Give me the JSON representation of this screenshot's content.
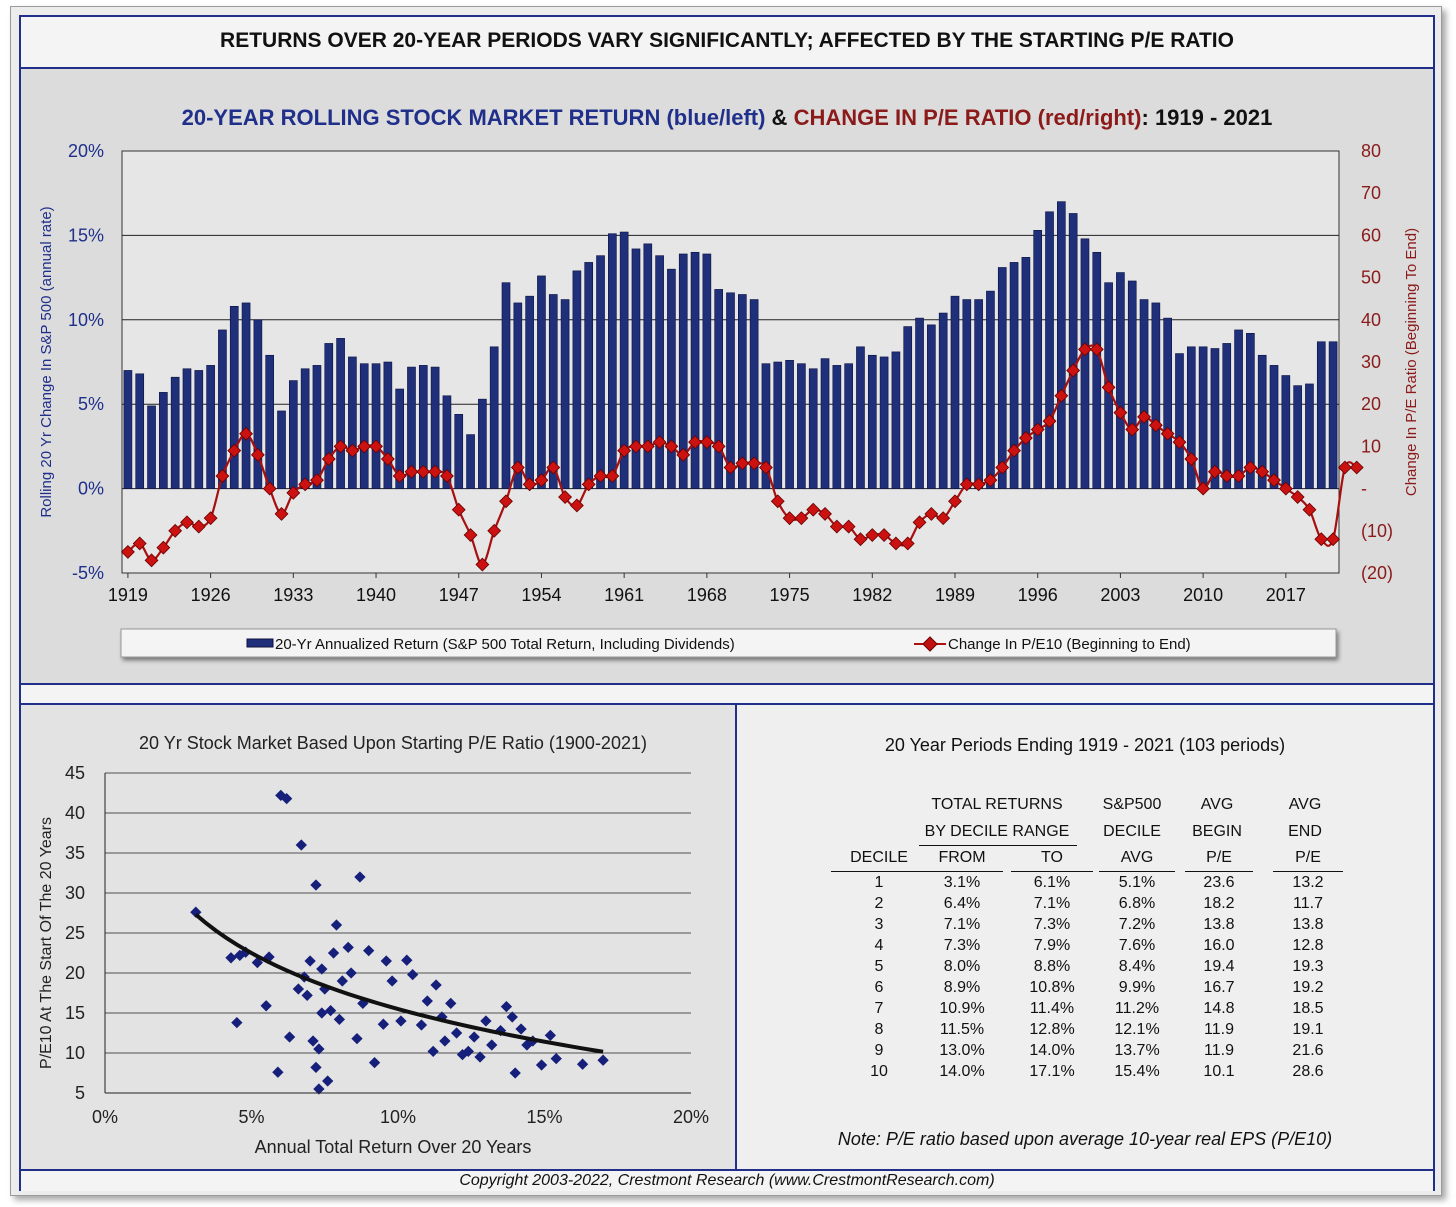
{
  "header": {
    "title": "RETURNS OVER 20-YEAR PERIODS VARY SIGNIFICANTLY; AFFECTED BY THE STARTING P/E RATIO"
  },
  "top_chart_title": {
    "part1": "20-YEAR ROLLING STOCK MARKET RETURN (blue/left)",
    "part2": " & ",
    "part3": "CHANGE IN P/E RATIO (red/right)",
    "part4": ": 1919 - 2021"
  },
  "colors": {
    "bar": "#1f2f7a",
    "line": "#b01010",
    "navy": "#1f2f8a",
    "darkred": "#8b1a1a"
  },
  "chart_data": [
    {
      "type": "bar",
      "title": "20-YEAR ROLLING STOCK MARKET RETURN (blue/left) & CHANGE IN P/E RATIO (red/right): 1919 - 2021",
      "ylabel": "Rolling 20 Yr Change In S&P 500 (annual rate)",
      "y2label": "Change In P/E Ratio (Beginning To End)",
      "ylim": [
        -5,
        20
      ],
      "y2lim": [
        -20,
        80
      ],
      "yticks": [
        "20%",
        "15%",
        "10%",
        "5%",
        "0%",
        "-5%"
      ],
      "y2ticks": [
        "80",
        "70",
        "60",
        "50",
        "40",
        "30",
        "20",
        "10",
        "-",
        "(10)",
        "(20)"
      ],
      "xticks": [
        "1919",
        "1926",
        "1933",
        "1940",
        "1947",
        "1954",
        "1961",
        "1968",
        "1975",
        "1982",
        "1989",
        "1996",
        "2003",
        "2010",
        "2017"
      ],
      "x_start": 1919,
      "x_end": 2021,
      "legend": [
        "20-Yr Annualized Return (S&P 500 Total Return, Including Dividends)",
        "Change In P/E10 (Beginning to End)"
      ],
      "series": [
        {
          "name": "20-Yr Annualized Return (S&P 500 Total Return, Including Dividends)",
          "type": "bar",
          "values": [
            7.0,
            6.8,
            4.9,
            5.7,
            6.6,
            7.1,
            7.0,
            7.3,
            9.4,
            10.8,
            11.0,
            10.0,
            7.9,
            4.6,
            6.4,
            7.1,
            7.3,
            8.6,
            8.9,
            7.8,
            7.4,
            7.4,
            7.5,
            5.9,
            7.2,
            7.3,
            7.2,
            5.5,
            4.4,
            3.2,
            5.3,
            8.4,
            12.2,
            11.0,
            11.4,
            12.6,
            11.5,
            11.2,
            12.9,
            13.4,
            13.8,
            15.1,
            15.2,
            14.2,
            14.5,
            13.8,
            13.0,
            13.9,
            14.0,
            13.9,
            11.8,
            11.6,
            11.5,
            11.2,
            7.4,
            7.5,
            7.6,
            7.4,
            7.1,
            7.7,
            7.3,
            7.4,
            8.4,
            7.9,
            7.8,
            8.1,
            9.6,
            10.1,
            9.7,
            10.4,
            11.4,
            11.2,
            11.2,
            11.7,
            13.1,
            13.4,
            13.7,
            15.3,
            16.4,
            17.0,
            16.3,
            14.8,
            14.0,
            12.2,
            12.8,
            12.3,
            11.2,
            11.0,
            10.1,
            8.0,
            8.4,
            8.4,
            8.3,
            8.6,
            9.4,
            9.2,
            7.9,
            7.3,
            6.7,
            6.1,
            6.2,
            8.7,
            8.7
          ]
        },
        {
          "name": "Change In P/E10 (Beginning to End)",
          "type": "line",
          "values": [
            -15,
            -13,
            -17,
            -14,
            -10,
            -8,
            -9,
            -7,
            3,
            9,
            13,
            8,
            0,
            -6,
            -1,
            1,
            2,
            7,
            10,
            9,
            10,
            10,
            7,
            3,
            4,
            4,
            4,
            3,
            -5,
            -11,
            -18,
            -10,
            -3,
            5,
            1,
            2,
            5,
            -2,
            -4,
            1,
            3,
            3,
            9,
            10,
            10,
            11,
            10,
            8,
            11,
            11,
            10,
            5,
            6,
            6,
            5,
            -3,
            -7,
            -7,
            -5,
            -6,
            -9,
            -9,
            -12,
            -11,
            -11,
            -13,
            -13,
            -8,
            -6,
            -7,
            -3,
            1,
            1,
            2,
            5,
            9,
            12,
            14,
            16,
            22,
            28,
            33,
            33,
            24,
            18,
            14,
            17,
            15,
            13,
            11,
            7,
            0,
            4,
            3,
            3,
            5,
            4,
            2,
            0,
            -2,
            -5,
            -12,
            -12,
            5,
            5
          ]
        }
      ]
    },
    {
      "type": "scatter",
      "title": "20 Yr Stock Market Based Upon Starting P/E Ratio (1900-2021)",
      "xlabel": "Annual Total Return Over 20 Years",
      "ylabel": "P/E10 At The Start Of The 20 Years",
      "xlim": [
        0,
        20
      ],
      "ylim": [
        5,
        45
      ],
      "xticks": [
        "0%",
        "5%",
        "10%",
        "15%",
        "20%"
      ],
      "yticks": [
        "45",
        "40",
        "35",
        "30",
        "25",
        "20",
        "15",
        "10",
        "5"
      ],
      "points": [
        [
          3.1,
          27.6
        ],
        [
          4.3,
          21.9
        ],
        [
          4.5,
          13.8
        ],
        [
          4.6,
          22.2
        ],
        [
          4.8,
          22.6
        ],
        [
          5.2,
          21.3
        ],
        [
          5.5,
          15.9
        ],
        [
          5.6,
          22.0
        ],
        [
          5.9,
          7.6
        ],
        [
          6.0,
          42.2
        ],
        [
          6.2,
          41.8
        ],
        [
          6.3,
          12.0
        ],
        [
          6.6,
          18.0
        ],
        [
          6.7,
          36.0
        ],
        [
          6.8,
          19.5
        ],
        [
          6.9,
          17.2
        ],
        [
          7.0,
          21.5
        ],
        [
          7.1,
          11.5
        ],
        [
          7.2,
          31.0
        ],
        [
          7.2,
          8.2
        ],
        [
          7.3,
          5.5
        ],
        [
          7.3,
          10.5
        ],
        [
          7.4,
          20.5
        ],
        [
          7.4,
          15.0
        ],
        [
          7.5,
          18.0
        ],
        [
          7.6,
          6.5
        ],
        [
          7.7,
          15.3
        ],
        [
          7.8,
          22.5
        ],
        [
          7.9,
          26.0
        ],
        [
          8.0,
          14.2
        ],
        [
          8.1,
          19.0
        ],
        [
          8.3,
          23.2
        ],
        [
          8.4,
          20.0
        ],
        [
          8.6,
          11.8
        ],
        [
          8.7,
          32.0
        ],
        [
          8.8,
          16.2
        ],
        [
          9.0,
          22.8
        ],
        [
          9.2,
          8.8
        ],
        [
          9.5,
          13.6
        ],
        [
          9.6,
          21.5
        ],
        [
          9.8,
          19.0
        ],
        [
          10.1,
          14.0
        ],
        [
          10.3,
          21.6
        ],
        [
          10.5,
          19.8
        ],
        [
          10.8,
          13.5
        ],
        [
          11.0,
          16.5
        ],
        [
          11.2,
          10.2
        ],
        [
          11.3,
          18.5
        ],
        [
          11.5,
          14.5
        ],
        [
          11.6,
          11.5
        ],
        [
          11.8,
          16.2
        ],
        [
          12.0,
          12.5
        ],
        [
          12.2,
          9.8
        ],
        [
          12.4,
          10.2
        ],
        [
          12.6,
          12.0
        ],
        [
          12.8,
          9.5
        ],
        [
          13.0,
          14.0
        ],
        [
          13.2,
          11.0
        ],
        [
          13.5,
          12.8
        ],
        [
          13.7,
          15.8
        ],
        [
          13.9,
          14.5
        ],
        [
          14.0,
          7.5
        ],
        [
          14.2,
          13.0
        ],
        [
          14.4,
          11.0
        ],
        [
          14.6,
          11.5
        ],
        [
          14.9,
          8.5
        ],
        [
          15.2,
          12.2
        ],
        [
          15.4,
          9.3
        ],
        [
          16.3,
          8.6
        ],
        [
          17.0,
          9.1
        ]
      ]
    }
  ],
  "table": {
    "title": "20 Year Periods Ending 1919 - 2021 (103 periods)",
    "group1_line1": "TOTAL RETURNS",
    "group1_line2": "BY DECILE RANGE",
    "col3_line1": "S&P500",
    "col3_line2": "DECILE",
    "col4_line1": "AVG",
    "col4_line2": "BEGIN",
    "col5_line1": "AVG",
    "col5_line2": "END",
    "headers": [
      "DECILE",
      "FROM",
      "TO",
      "AVG",
      "P/E",
      "P/E"
    ],
    "rows": [
      [
        "1",
        "3.1%",
        "6.1%",
        "5.1%",
        "23.6",
        "13.2"
      ],
      [
        "2",
        "6.4%",
        "7.1%",
        "6.8%",
        "18.2",
        "11.7"
      ],
      [
        "3",
        "7.1%",
        "7.3%",
        "7.2%",
        "13.8",
        "13.8"
      ],
      [
        "4",
        "7.3%",
        "7.9%",
        "7.6%",
        "16.0",
        "12.8"
      ],
      [
        "5",
        "8.0%",
        "8.8%",
        "8.4%",
        "19.4",
        "19.3"
      ],
      [
        "6",
        "8.9%",
        "10.8%",
        "9.9%",
        "16.7",
        "19.2"
      ],
      [
        "7",
        "10.9%",
        "11.4%",
        "11.2%",
        "14.8",
        "18.5"
      ],
      [
        "8",
        "11.5%",
        "12.8%",
        "12.1%",
        "11.9",
        "19.1"
      ],
      [
        "9",
        "13.0%",
        "14.0%",
        "13.7%",
        "11.9",
        "21.6"
      ],
      [
        "10",
        "14.0%",
        "17.1%",
        "15.4%",
        "10.1",
        "28.6"
      ]
    ],
    "note": "Note: P/E ratio based upon average 10-year real EPS (P/E10)"
  },
  "footer": {
    "copyright": "Copyright 2003-2022, Crestmont Research (www.CrestmontResearch.com)"
  }
}
